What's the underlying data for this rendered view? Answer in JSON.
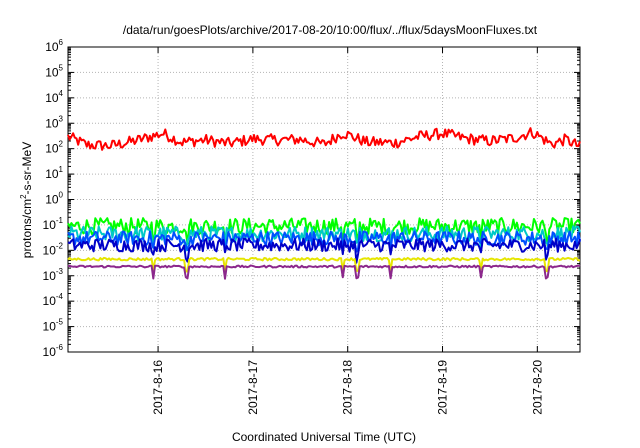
{
  "chart_data": {
    "type": "line",
    "title": "/data/run/goesPlots/archive/2017-08-20/10:00/flux/../flux/5daysMoonFluxes.txt",
    "xlabel": "Coordinated Universal Time (UTC)",
    "ylabel": {
      "main": "protons/cm",
      "sup": "2",
      "rest": "-s-sr-MeV"
    },
    "y_scale": "log",
    "ylim_exp": [
      -6,
      6
    ],
    "y_ticks": [
      {
        "exp": -6,
        "label": "10",
        "sup": "-6"
      },
      {
        "exp": -5,
        "label": "10",
        "sup": "-5"
      },
      {
        "exp": -4,
        "label": "10",
        "sup": "-4"
      },
      {
        "exp": -3,
        "label": "10",
        "sup": "-3"
      },
      {
        "exp": -2,
        "label": "10",
        "sup": "-2"
      },
      {
        "exp": -1,
        "label": "10",
        "sup": "-1"
      },
      {
        "exp": 0,
        "label": "10",
        "sup": "0"
      },
      {
        "exp": 1,
        "label": "10",
        "sup": "1"
      },
      {
        "exp": 2,
        "label": "10",
        "sup": "2"
      },
      {
        "exp": 3,
        "label": "10",
        "sup": "3"
      },
      {
        "exp": 4,
        "label": "10",
        "sup": "4"
      },
      {
        "exp": 5,
        "label": "10",
        "sup": "5"
      },
      {
        "exp": 6,
        "label": "10",
        "sup": "6"
      }
    ],
    "xlim_days": [
      15.05,
      20.45
    ],
    "x_ticks": [
      {
        "day": 16,
        "label": "2017-8-16"
      },
      {
        "day": 17,
        "label": "2017-8-17"
      },
      {
        "day": 18,
        "label": "2017-8-18"
      },
      {
        "day": 19,
        "label": "2017-8-19"
      },
      {
        "day": 20,
        "label": "2017-8-20"
      }
    ],
    "grid": true,
    "series": [
      {
        "color": "#ff0000",
        "center": [
          {
            "day": 15.05,
            "value": 300
          },
          {
            "day": 15.25,
            "value": 140
          },
          {
            "day": 15.5,
            "value": 130
          },
          {
            "day": 15.75,
            "value": 200
          },
          {
            "day": 16.05,
            "value": 400
          },
          {
            "day": 16.25,
            "value": 180
          },
          {
            "day": 16.5,
            "value": 220
          },
          {
            "day": 16.75,
            "value": 160
          },
          {
            "day": 17.0,
            "value": 240
          },
          {
            "day": 17.25,
            "value": 220
          },
          {
            "day": 17.5,
            "value": 230
          },
          {
            "day": 17.75,
            "value": 150
          },
          {
            "day": 17.95,
            "value": 420
          },
          {
            "day": 18.2,
            "value": 180
          },
          {
            "day": 18.5,
            "value": 170
          },
          {
            "day": 18.75,
            "value": 300
          },
          {
            "day": 19.0,
            "value": 400
          },
          {
            "day": 19.25,
            "value": 250
          },
          {
            "day": 19.5,
            "value": 200
          },
          {
            "day": 19.75,
            "value": 260
          },
          {
            "day": 19.95,
            "value": 450
          },
          {
            "day": 20.15,
            "value": 150
          },
          {
            "day": 20.3,
            "value": 230
          },
          {
            "day": 20.45,
            "value": 120
          }
        ]
      },
      {
        "color": "#00ff00",
        "center": [
          {
            "day": 15.05,
            "value": 0.09
          },
          {
            "day": 20.45,
            "value": 0.09
          }
        ]
      },
      {
        "color": "#00c8c8",
        "center": [
          {
            "day": 15.05,
            "value": 0.045
          },
          {
            "day": 20.45,
            "value": 0.045
          }
        ]
      },
      {
        "color": "#0050ff",
        "center": [
          {
            "day": 15.05,
            "value": 0.03
          },
          {
            "day": 20.45,
            "value": 0.03
          }
        ]
      },
      {
        "color": "#0000c8",
        "center": [
          {
            "day": 15.05,
            "value": 0.016
          },
          {
            "day": 20.45,
            "value": 0.016
          }
        ]
      },
      {
        "color": "#e6e600",
        "center": [
          {
            "day": 15.05,
            "value": 0.0045
          },
          {
            "day": 20.45,
            "value": 0.0045
          }
        ]
      },
      {
        "color": "#8c288c",
        "center": [
          {
            "day": 15.05,
            "value": 0.0023
          },
          {
            "day": 20.45,
            "value": 0.0023
          }
        ]
      }
    ]
  }
}
